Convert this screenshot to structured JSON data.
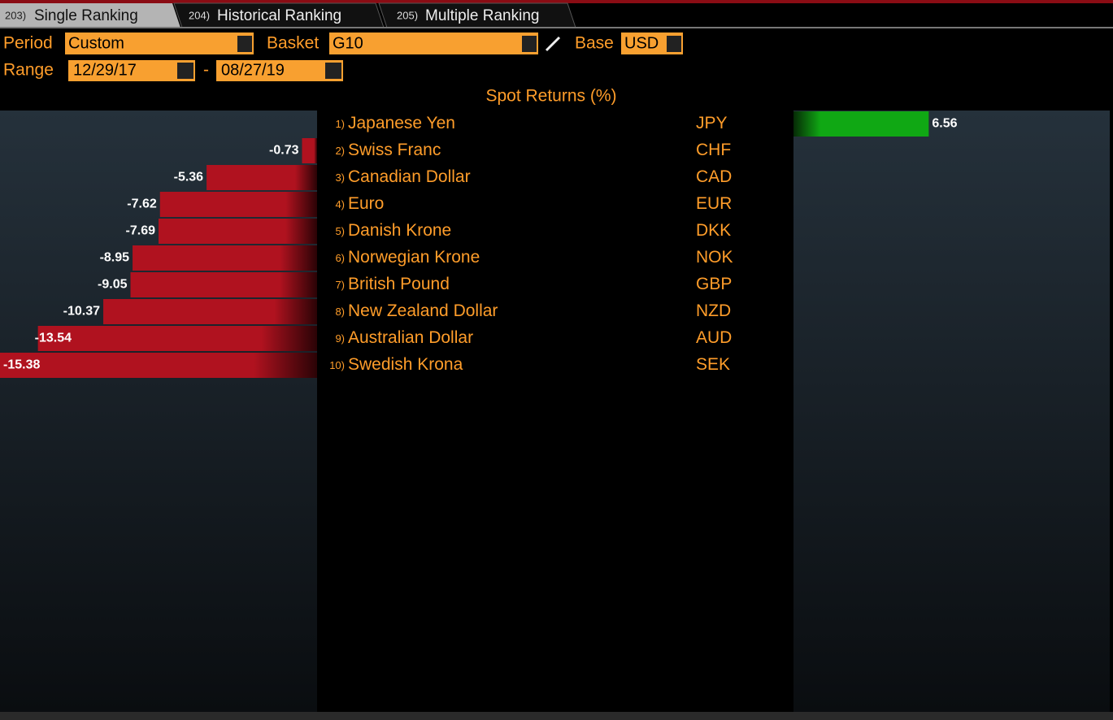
{
  "tabs": [
    {
      "number": "203)",
      "label": "Single Ranking"
    },
    {
      "number": "204)",
      "label": "Historical Ranking"
    },
    {
      "number": "205)",
      "label": "Multiple Ranking"
    }
  ],
  "controls": {
    "period_label": "Period",
    "period_value": "Custom",
    "basket_label": "Basket",
    "basket_value": "G10",
    "base_label": "Base",
    "base_value": "USD",
    "range_label": "Range",
    "range_start": "12/29/17",
    "range_separator": "-",
    "range_end": "08/27/19"
  },
  "chart_data": {
    "type": "bar",
    "title": "Spot Returns (%)",
    "ranks": [
      "1)",
      "2)",
      "3)",
      "4)",
      "5)",
      "6)",
      "7)",
      "8)",
      "9)",
      "10)"
    ],
    "categories": [
      "Japanese Yen",
      "Swiss Franc",
      "Canadian Dollar",
      "Euro",
      "Danish Krone",
      "Norwegian Krone",
      "British Pound",
      "New Zealand Dollar",
      "Australian Dollar",
      "Swedish Krona"
    ],
    "codes": [
      "JPY",
      "CHF",
      "CAD",
      "EUR",
      "DKK",
      "NOK",
      "GBP",
      "NZD",
      "AUD",
      "SEK"
    ],
    "values": [
      6.56,
      -0.73,
      -5.36,
      -7.62,
      -7.69,
      -8.95,
      -9.05,
      -10.37,
      -13.54,
      -15.38
    ],
    "colors": {
      "negative": "#b0121f",
      "positive": "#10a814"
    }
  }
}
